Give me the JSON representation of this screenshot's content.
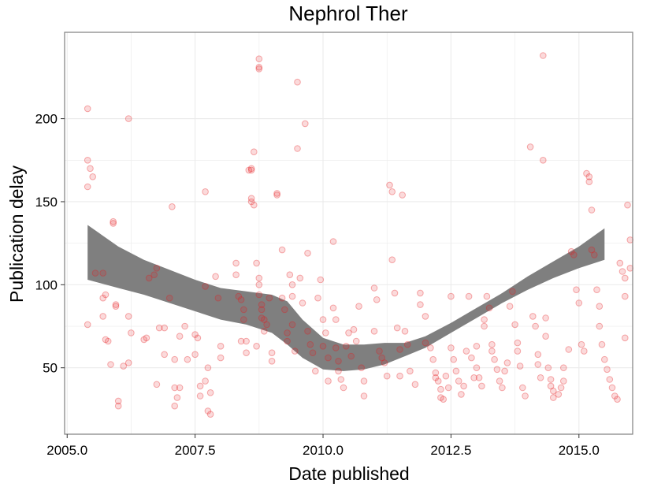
{
  "chart_data": {
    "type": "scatter",
    "title": "Nephrol Ther",
    "xlabel": "Date published",
    "ylabel": "Publication delay",
    "xlim": [
      2004.95,
      2016.05
    ],
    "ylim": [
      10,
      252
    ],
    "x_ticks": [
      2005.0,
      2007.5,
      2010.0,
      2012.5,
      2015.0
    ],
    "x_tick_labels": [
      "2005.0",
      "2007.5",
      "2010.0",
      "2012.5",
      "2015.0"
    ],
    "y_ticks": [
      50,
      100,
      150,
      200
    ],
    "y_tick_labels": [
      "50",
      "100",
      "150",
      "200"
    ],
    "grid": true,
    "legend": "none",
    "colors": {
      "points": "#e41a1c",
      "band": "#7f7f7f",
      "grid": "#ebebeb",
      "panel_border": "#7f7f7f"
    },
    "series": [
      {
        "kind": "points",
        "points": [
          [
            2005.4,
            206
          ],
          [
            2005.4,
            175
          ],
          [
            2005.45,
            170
          ],
          [
            2005.5,
            165
          ],
          [
            2005.4,
            159
          ],
          [
            2005.55,
            107
          ],
          [
            2005.4,
            76
          ],
          [
            2005.7,
            107
          ],
          [
            2005.75,
            94
          ],
          [
            2005.7,
            81
          ],
          [
            2005.75,
            67
          ],
          [
            2005.85,
            52
          ],
          [
            2005.8,
            66
          ],
          [
            2005.9,
            138
          ],
          [
            2005.9,
            137
          ],
          [
            2005.95,
            88
          ],
          [
            2005.95,
            87
          ],
          [
            2005.7,
            92
          ],
          [
            2006.0,
            30
          ],
          [
            2006.0,
            27
          ],
          [
            2006.1,
            51
          ],
          [
            2006.2,
            200
          ],
          [
            2006.2,
            81
          ],
          [
            2006.25,
            71
          ],
          [
            2006.2,
            53
          ],
          [
            2006.5,
            67
          ],
          [
            2006.55,
            68
          ],
          [
            2006.6,
            104
          ],
          [
            2006.7,
            106
          ],
          [
            2006.75,
            110
          ],
          [
            2006.8,
            74
          ],
          [
            2006.9,
            74
          ],
          [
            2006.75,
            40
          ],
          [
            2007.05,
            147
          ],
          [
            2007.0,
            92
          ],
          [
            2007.1,
            55
          ],
          [
            2006.9,
            58
          ],
          [
            2007.2,
            69
          ],
          [
            2007.1,
            38
          ],
          [
            2007.15,
            32
          ],
          [
            2007.1,
            27
          ],
          [
            2007.2,
            38
          ],
          [
            2007.3,
            75
          ],
          [
            2007.35,
            55
          ],
          [
            2007.5,
            58
          ],
          [
            2007.5,
            70
          ],
          [
            2007.55,
            68
          ],
          [
            2007.6,
            39
          ],
          [
            2007.6,
            33
          ],
          [
            2007.7,
            156
          ],
          [
            2007.7,
            99
          ],
          [
            2007.75,
            50
          ],
          [
            2007.8,
            35
          ],
          [
            2007.75,
            24
          ],
          [
            2007.8,
            22
          ],
          [
            2007.9,
            105
          ],
          [
            2007.95,
            92
          ],
          [
            2008.0,
            63
          ],
          [
            2008.0,
            56
          ],
          [
            2007.7,
            42
          ],
          [
            2008.3,
            113
          ],
          [
            2008.3,
            106
          ],
          [
            2008.35,
            93
          ],
          [
            2008.4,
            91
          ],
          [
            2008.45,
            79
          ],
          [
            2008.45,
            85
          ],
          [
            2008.5,
            66
          ],
          [
            2008.5,
            59
          ],
          [
            2008.4,
            66
          ],
          [
            2008.55,
            169
          ],
          [
            2008.6,
            170
          ],
          [
            2008.6,
            169
          ],
          [
            2008.65,
            180
          ],
          [
            2008.6,
            152
          ],
          [
            2008.6,
            150
          ],
          [
            2008.65,
            148
          ],
          [
            2008.7,
            113
          ],
          [
            2008.75,
            104
          ],
          [
            2008.75,
            100
          ],
          [
            2008.75,
            94
          ],
          [
            2008.8,
            85
          ],
          [
            2008.85,
            79
          ],
          [
            2008.85,
            72
          ],
          [
            2008.7,
            63
          ],
          [
            2008.75,
            236
          ],
          [
            2008.75,
            231
          ],
          [
            2008.75,
            230
          ],
          [
            2008.8,
            88
          ],
          [
            2008.8,
            80
          ],
          [
            2008.9,
            76
          ],
          [
            2008.95,
            92
          ],
          [
            2009.0,
            59
          ],
          [
            2009.0,
            54
          ],
          [
            2009.1,
            154
          ],
          [
            2009.1,
            155
          ],
          [
            2009.2,
            121
          ],
          [
            2009.2,
            92
          ],
          [
            2009.25,
            85
          ],
          [
            2009.3,
            71
          ],
          [
            2009.3,
            66
          ],
          [
            2009.35,
            106
          ],
          [
            2009.4,
            100
          ],
          [
            2009.4,
            93
          ],
          [
            2009.4,
            76
          ],
          [
            2009.45,
            60
          ],
          [
            2009.5,
            222
          ],
          [
            2009.5,
            182
          ],
          [
            2009.55,
            104
          ],
          [
            2009.6,
            89
          ],
          [
            2009.65,
            197
          ],
          [
            2009.7,
            119
          ],
          [
            2009.7,
            72
          ],
          [
            2009.75,
            64
          ],
          [
            2009.8,
            59
          ],
          [
            2009.85,
            48
          ],
          [
            2009.9,
            92
          ],
          [
            2009.95,
            103
          ],
          [
            2010.0,
            79
          ],
          [
            2010.05,
            71
          ],
          [
            2010.0,
            63
          ],
          [
            2010.1,
            56
          ],
          [
            2010.1,
            42
          ],
          [
            2010.2,
            126
          ],
          [
            2010.2,
            86
          ],
          [
            2010.25,
            79
          ],
          [
            2010.25,
            62
          ],
          [
            2010.3,
            54
          ],
          [
            2010.3,
            48
          ],
          [
            2010.35,
            43
          ],
          [
            2010.4,
            38
          ],
          [
            2010.45,
            63
          ],
          [
            2010.5,
            71
          ],
          [
            2010.55,
            57
          ],
          [
            2010.6,
            73
          ],
          [
            2010.65,
            66
          ],
          [
            2010.7,
            87
          ],
          [
            2010.75,
            50
          ],
          [
            2010.8,
            42
          ],
          [
            2010.8,
            33
          ],
          [
            2011.0,
            98
          ],
          [
            2011.05,
            91
          ],
          [
            2011.0,
            72
          ],
          [
            2011.1,
            60
          ],
          [
            2011.15,
            56
          ],
          [
            2011.2,
            53
          ],
          [
            2011.25,
            45
          ],
          [
            2011.3,
            160
          ],
          [
            2011.35,
            156
          ],
          [
            2011.35,
            115
          ],
          [
            2011.4,
            95
          ],
          [
            2011.45,
            74
          ],
          [
            2011.5,
            61
          ],
          [
            2011.55,
            154
          ],
          [
            2011.5,
            45
          ],
          [
            2011.6,
            72
          ],
          [
            2011.65,
            64
          ],
          [
            2011.7,
            48
          ],
          [
            2011.8,
            40
          ],
          [
            2011.9,
            95
          ],
          [
            2011.9,
            88
          ],
          [
            2012.0,
            81
          ],
          [
            2012.0,
            65
          ],
          [
            2012.1,
            62
          ],
          [
            2012.15,
            55
          ],
          [
            2012.2,
            47
          ],
          [
            2012.2,
            44
          ],
          [
            2012.25,
            42
          ],
          [
            2012.3,
            37
          ],
          [
            2012.3,
            32
          ],
          [
            2012.35,
            31
          ],
          [
            2012.4,
            45
          ],
          [
            2012.45,
            38
          ],
          [
            2012.5,
            93
          ],
          [
            2012.5,
            62
          ],
          [
            2012.55,
            55
          ],
          [
            2012.6,
            48
          ],
          [
            2012.65,
            42
          ],
          [
            2012.7,
            34
          ],
          [
            2012.75,
            39
          ],
          [
            2012.8,
            60
          ],
          [
            2012.85,
            93
          ],
          [
            2012.9,
            56
          ],
          [
            2012.95,
            44
          ],
          [
            2013.0,
            63
          ],
          [
            2013.0,
            50
          ],
          [
            2013.05,
            44
          ],
          [
            2013.1,
            39
          ],
          [
            2013.15,
            79
          ],
          [
            2013.15,
            75
          ],
          [
            2013.2,
            93
          ],
          [
            2013.25,
            86
          ],
          [
            2013.3,
            64
          ],
          [
            2013.3,
            60
          ],
          [
            2013.35,
            55
          ],
          [
            2013.4,
            49
          ],
          [
            2013.45,
            42
          ],
          [
            2013.5,
            38
          ],
          [
            2013.55,
            48
          ],
          [
            2013.6,
            53
          ],
          [
            2013.65,
            87
          ],
          [
            2013.7,
            96
          ],
          [
            2013.75,
            76
          ],
          [
            2013.8,
            65
          ],
          [
            2013.8,
            60
          ],
          [
            2013.85,
            51
          ],
          [
            2013.9,
            38
          ],
          [
            2013.95,
            33
          ],
          [
            2014.05,
            183
          ],
          [
            2014.1,
            81
          ],
          [
            2014.15,
            75
          ],
          [
            2014.2,
            58
          ],
          [
            2014.2,
            52
          ],
          [
            2014.25,
            44
          ],
          [
            2014.3,
            238
          ],
          [
            2014.3,
            175
          ],
          [
            2014.35,
            80
          ],
          [
            2014.35,
            69
          ],
          [
            2014.4,
            50
          ],
          [
            2014.45,
            43
          ],
          [
            2014.45,
            39
          ],
          [
            2014.5,
            36
          ],
          [
            2014.5,
            32
          ],
          [
            2014.6,
            34
          ],
          [
            2014.65,
            38
          ],
          [
            2014.7,
            42
          ],
          [
            2014.7,
            50
          ],
          [
            2014.8,
            61
          ],
          [
            2014.85,
            120
          ],
          [
            2014.9,
            118
          ],
          [
            2014.95,
            97
          ],
          [
            2015.0,
            89
          ],
          [
            2015.05,
            64
          ],
          [
            2015.1,
            60
          ],
          [
            2015.15,
            167
          ],
          [
            2015.2,
            165
          ],
          [
            2015.2,
            162
          ],
          [
            2015.25,
            145
          ],
          [
            2015.25,
            121
          ],
          [
            2015.3,
            118
          ],
          [
            2015.35,
            97
          ],
          [
            2015.4,
            87
          ],
          [
            2015.4,
            75
          ],
          [
            2015.45,
            64
          ],
          [
            2015.5,
            55
          ],
          [
            2015.55,
            49
          ],
          [
            2015.6,
            43
          ],
          [
            2015.65,
            38
          ],
          [
            2015.7,
            33
          ],
          [
            2015.75,
            31
          ],
          [
            2015.8,
            113
          ],
          [
            2015.85,
            108
          ],
          [
            2015.9,
            104
          ],
          [
            2015.9,
            93
          ],
          [
            2015.95,
            148
          ],
          [
            2016.0,
            127
          ],
          [
            2016.0,
            110
          ],
          [
            2015.9,
            68
          ]
        ]
      },
      {
        "kind": "smooth-band",
        "x": [
          2005.4,
          2006.0,
          2006.5,
          2007.0,
          2007.5,
          2008.0,
          2008.5,
          2009.0,
          2009.3,
          2009.6,
          2010.0,
          2010.4,
          2010.8,
          2011.2,
          2011.6,
          2012.0,
          2012.5,
          2013.0,
          2013.5,
          2014.0,
          2014.5,
          2015.0,
          2015.5
        ],
        "upper": [
          136,
          123,
          115,
          109,
          103,
          98,
          96,
          94,
          90,
          79,
          68,
          64,
          64,
          65,
          65,
          69,
          77,
          86,
          95,
          105,
          114,
          123,
          134
        ],
        "lower": [
          103,
          98,
          94,
          89,
          84,
          79,
          76,
          71,
          64,
          56,
          49,
          48,
          49,
          52,
          57,
          62,
          71,
          80,
          89,
          97,
          104,
          110,
          115
        ]
      }
    ]
  }
}
